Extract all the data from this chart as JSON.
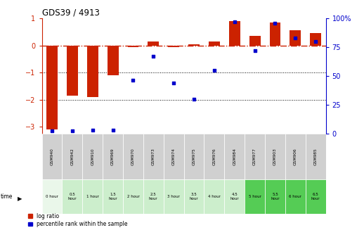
{
  "title": "GDS39 / 4913",
  "samples": [
    "GSM940",
    "GSM942",
    "GSM910",
    "GSM969",
    "GSM970",
    "GSM973",
    "GSM974",
    "GSM975",
    "GSM976",
    "GSM984",
    "GSM977",
    "GSM903",
    "GSM906",
    "GSM985"
  ],
  "time_labels": [
    "0 hour",
    "0.5\nhour",
    "1 hour",
    "1.5\nhour",
    "2 hour",
    "2.5\nhour",
    "3 hour",
    "3.5\nhour",
    "4 hour",
    "4.5\nhour",
    "5 hour",
    "5.5\nhour",
    "6 hour",
    "6.5\nhour"
  ],
  "log_ratio": [
    -3.1,
    -1.85,
    -1.9,
    -1.1,
    -0.05,
    0.15,
    -0.05,
    0.05,
    0.15,
    0.9,
    0.35,
    0.85,
    0.55,
    0.45
  ],
  "percentile": [
    2,
    2,
    3,
    3,
    46,
    67,
    44,
    30,
    55,
    97,
    72,
    96,
    83,
    80
  ],
  "ylim_left": [
    -3.25,
    1.0
  ],
  "ylim_right": [
    0,
    100
  ],
  "yticks_left": [
    -3,
    -2,
    -1,
    0,
    1
  ],
  "yticks_right": [
    0,
    25,
    50,
    75,
    100
  ],
  "red_color": "#cc2200",
  "blue_color": "#0000cc",
  "bg_color": "#ffffff",
  "row1_colors": [
    "#d0d0d0",
    "#d0d0d0",
    "#d0d0d0",
    "#d0d0d0",
    "#d0d0d0",
    "#d0d0d0",
    "#d0d0d0",
    "#d0d0d0",
    "#d0d0d0",
    "#d0d0d0",
    "#d0d0d0",
    "#d0d0d0",
    "#d0d0d0",
    "#d0d0d0"
  ],
  "row2_colors": [
    "#eaf7ea",
    "#cceecc",
    "#cceecc",
    "#cceecc",
    "#cceecc",
    "#cceecc",
    "#cceecc",
    "#cceecc",
    "#cceecc",
    "#cceecc",
    "#55cc55",
    "#55cc55",
    "#55cc55",
    "#55cc55"
  ]
}
